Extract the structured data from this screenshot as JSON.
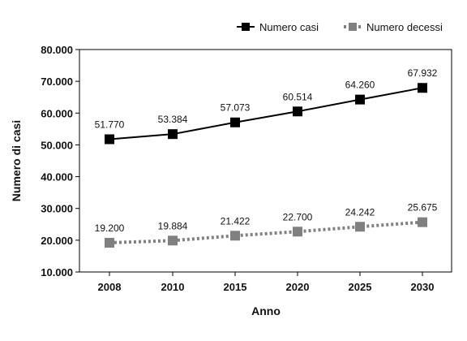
{
  "chart_data": {
    "type": "line",
    "categories": [
      "2008",
      "2010",
      "2015",
      "2020",
      "2025",
      "2030"
    ],
    "series": [
      {
        "name": "Numero casi",
        "values": [
          51770,
          53384,
          57073,
          60514,
          64260,
          67932
        ],
        "labels": [
          "51.770",
          "53.384",
          "57.073",
          "60.514",
          "64.260",
          "67.932"
        ],
        "color": "#000000",
        "line_style": "solid",
        "marker": "square"
      },
      {
        "name": "Numero decessi",
        "values": [
          19200,
          19884,
          21422,
          22700,
          24242,
          25675
        ],
        "labels": [
          "19.200",
          "19.884",
          "21.422",
          "22.700",
          "24.242",
          "25.675"
        ],
        "color": "#808080",
        "line_style": "dotted",
        "marker": "square"
      }
    ],
    "xlabel": "Anno",
    "ylabel": "Numero di casi",
    "ylim": [
      10000,
      80000
    ],
    "yticks": [
      10000,
      20000,
      30000,
      40000,
      50000,
      60000,
      70000,
      80000
    ],
    "ytick_labels": [
      "10.000",
      "20.000",
      "30.000",
      "40.000",
      "50.000",
      "60.000",
      "70.000",
      "80.000"
    ],
    "grid": false,
    "legend_position": "top-right"
  }
}
